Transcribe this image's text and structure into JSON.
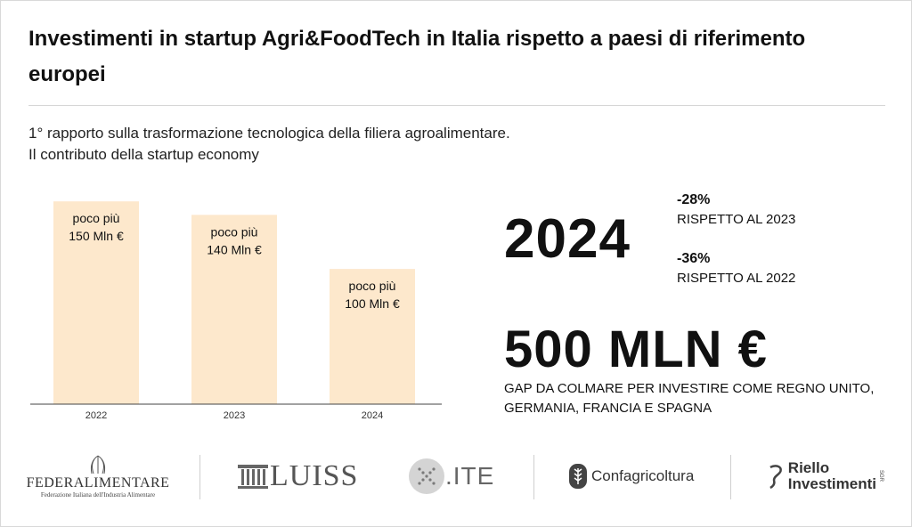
{
  "title": "Investimenti in startup Agri&FoodTech in Italia rispetto a paesi di riferimento europei",
  "subtitle_line1": "1° rapporto sulla trasformazione tecnologica della filiera agroalimentare.",
  "subtitle_line2": "Il contributo della startup economy",
  "colors": {
    "bar": "#fde8cc",
    "axis": "#444444",
    "text": "#111111"
  },
  "chart_data": {
    "type": "bar",
    "categories": [
      "2022",
      "2023",
      "2024"
    ],
    "values": [
      150,
      140,
      100
    ],
    "bar_labels": [
      [
        "poco più",
        "150 Mln €"
      ],
      [
        "poco più",
        "140 Mln €"
      ],
      [
        "poco più",
        "100 Mln €"
      ]
    ],
    "title": "",
    "xlabel": "",
    "ylabel": "",
    "ylim": [
      0,
      160
    ],
    "grid": false,
    "legend": "none"
  },
  "highlight": {
    "year": "2024",
    "stats": [
      {
        "pct": "-28%",
        "desc": "RISPETTO AL 2023"
      },
      {
        "pct": "-36%",
        "desc": "RISPETTO AL 2022"
      }
    ],
    "gap_value": "500 MLN €",
    "gap_desc": "GAP DA COLMARE PER INVESTIRE COME REGNO UNITO, GERMANIA, FRANCIA E SPAGNA"
  },
  "logos": {
    "federalimentare": {
      "name": "FEDERALIMENTARE",
      "sub": "Federazione Italiana dell'Industria Alimentare"
    },
    "luiss": {
      "name": "LUISS"
    },
    "ite": {
      "name": ".ITE"
    },
    "confagricoltura": {
      "name": "Confagricoltura"
    },
    "riello": {
      "line1": "Riello",
      "line2": "Investimenti",
      "sgr": "SGR"
    }
  }
}
